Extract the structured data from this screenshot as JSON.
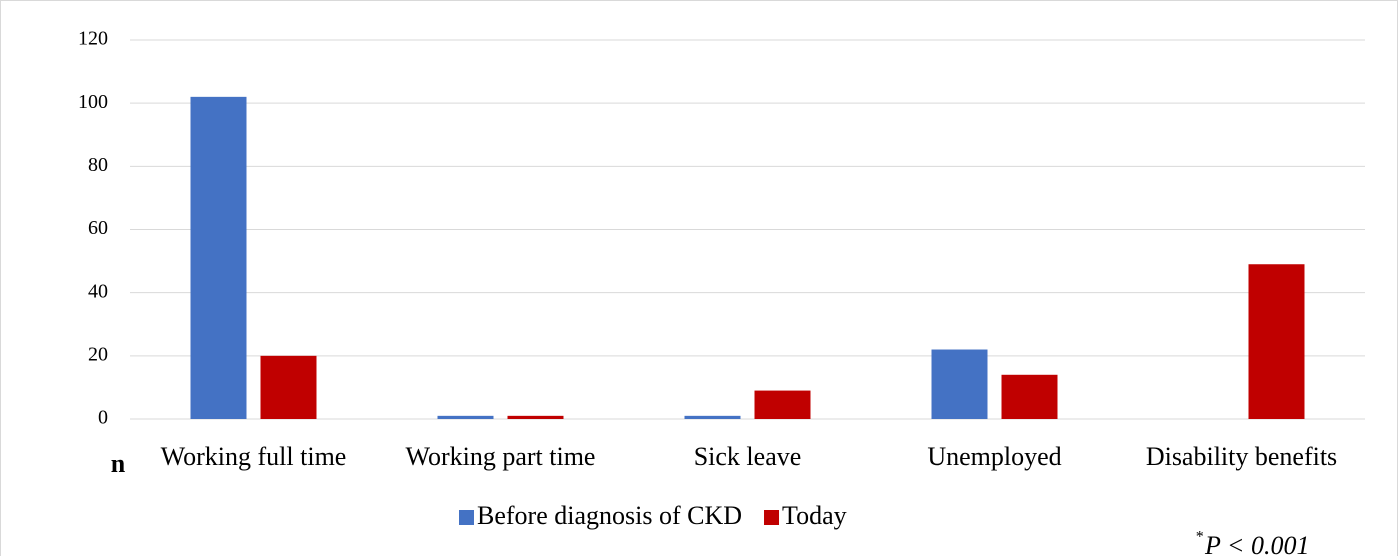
{
  "chart_data": {
    "type": "bar",
    "y_axis_label": "n",
    "categories": [
      "Working full time",
      "Working part time",
      "Sick leave",
      "Unemployed",
      "Disability benefits"
    ],
    "series": [
      {
        "name": "Before diagnosis of CKD",
        "color": "#4472c4",
        "values": [
          102,
          1,
          1,
          22,
          0
        ]
      },
      {
        "name": "Today",
        "color": "#c00000",
        "values": [
          20,
          1,
          9,
          14,
          49
        ]
      }
    ],
    "ylim": [
      0,
      120
    ],
    "yticks": [
      0,
      20,
      40,
      60,
      80,
      100,
      120
    ],
    "grid": true,
    "annotation_marker": "*",
    "annotation": "P < 0.001"
  }
}
